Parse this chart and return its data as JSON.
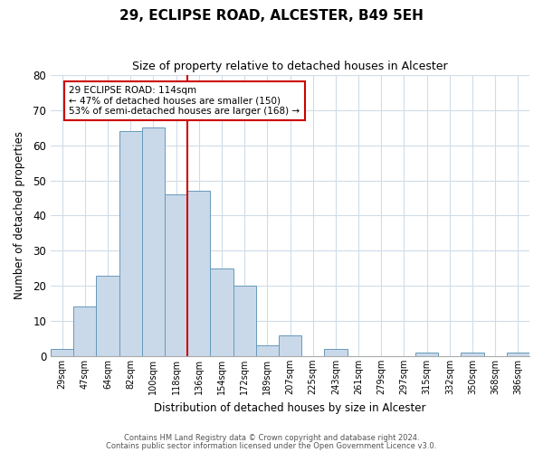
{
  "title": "29, ECLIPSE ROAD, ALCESTER, B49 5EH",
  "subtitle": "Size of property relative to detached houses in Alcester",
  "xlabel": "Distribution of detached houses by size in Alcester",
  "ylabel": "Number of detached properties",
  "bin_labels": [
    "29sqm",
    "47sqm",
    "64sqm",
    "82sqm",
    "100sqm",
    "118sqm",
    "136sqm",
    "154sqm",
    "172sqm",
    "189sqm",
    "207sqm",
    "225sqm",
    "243sqm",
    "261sqm",
    "279sqm",
    "297sqm",
    "315sqm",
    "332sqm",
    "350sqm",
    "368sqm",
    "386sqm"
  ],
  "bar_values": [
    2,
    14,
    23,
    64,
    65,
    46,
    47,
    25,
    20,
    3,
    6,
    0,
    2,
    0,
    0,
    0,
    1,
    0,
    1,
    0,
    1
  ],
  "bar_color": "#c9d9ea",
  "bar_edge_color": "#6699bb",
  "vline_color": "#cc0000",
  "vline_x_index": 5.5,
  "ylim": [
    0,
    80
  ],
  "yticks": [
    0,
    10,
    20,
    30,
    40,
    50,
    60,
    70,
    80
  ],
  "annotation_title": "29 ECLIPSE ROAD: 114sqm",
  "annotation_line1": "← 47% of detached houses are smaller (150)",
  "annotation_line2": "53% of semi-detached houses are larger (168) →",
  "annotation_box_color": "#ffffff",
  "annotation_box_edge": "#cc0000",
  "footer1": "Contains HM Land Registry data © Crown copyright and database right 2024.",
  "footer2": "Contains public sector information licensed under the Open Government Licence v3.0.",
  "background_color": "#ffffff",
  "grid_color": "#d0dce8"
}
